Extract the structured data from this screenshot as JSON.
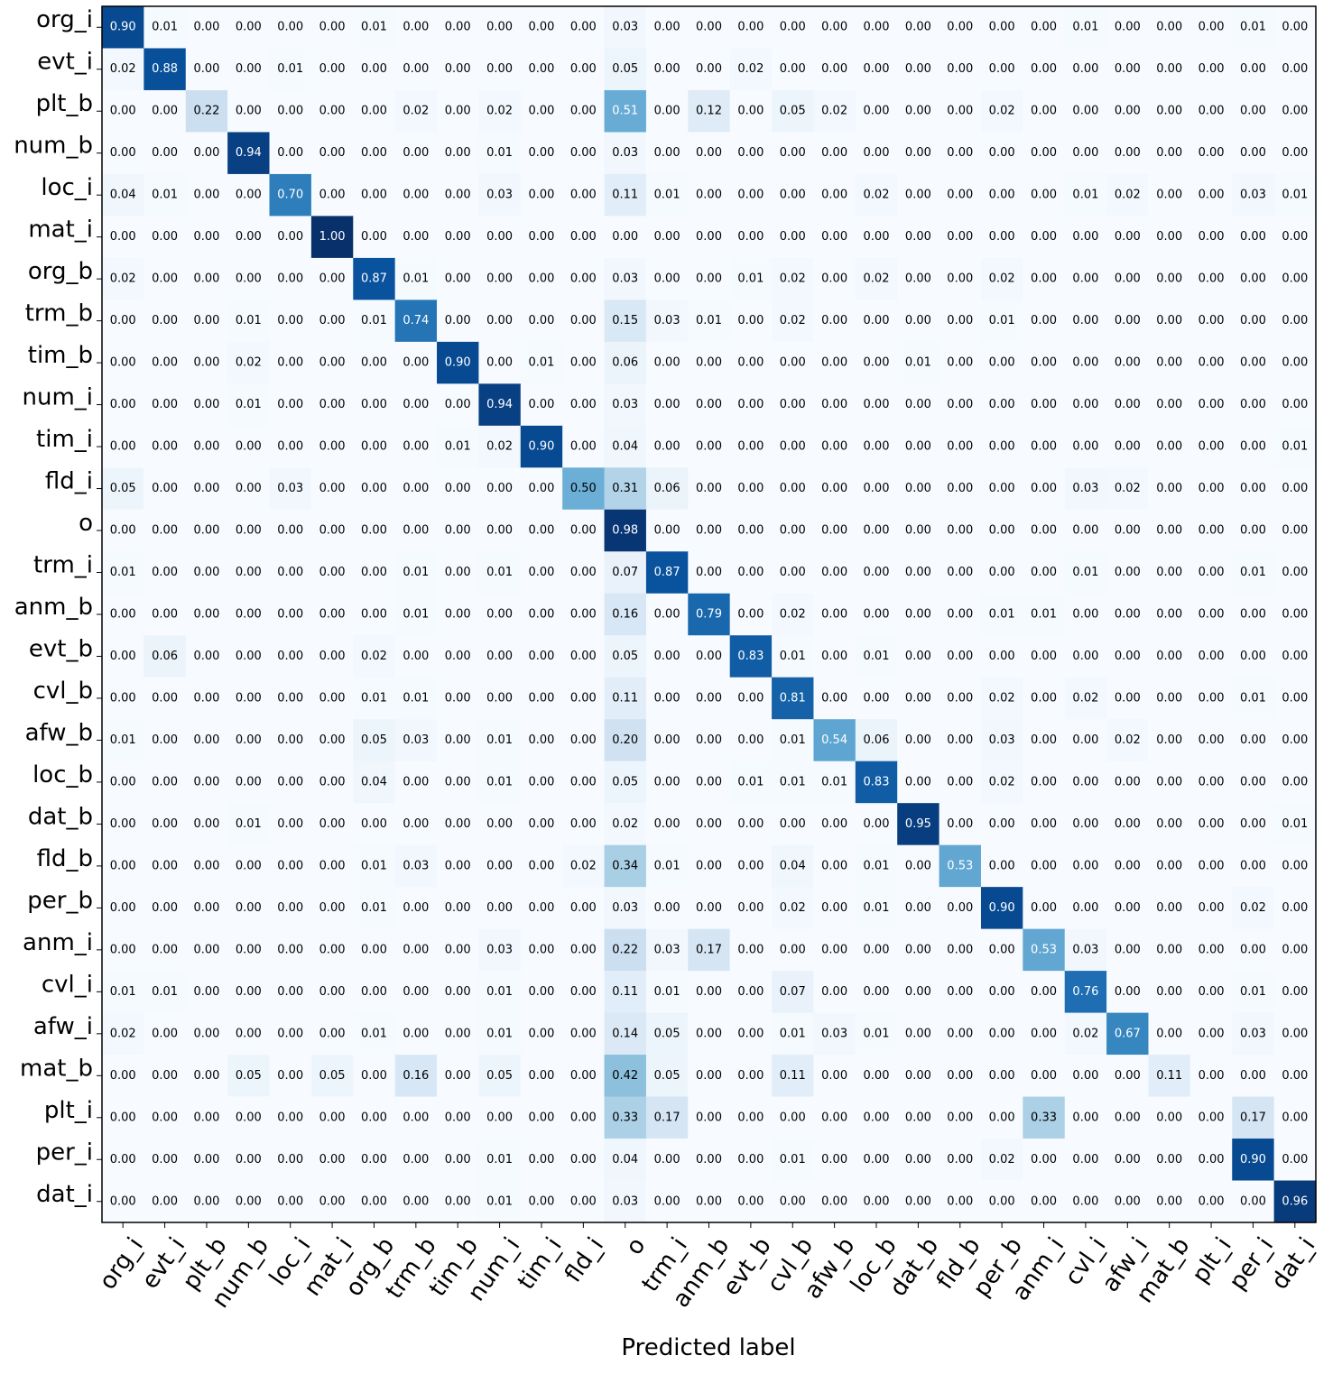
{
  "chart_data": {
    "type": "heatmap",
    "title": "",
    "xlabel": "Predicted label",
    "ylabel": "",
    "labels": [
      "org_i",
      "evt_i",
      "plt_b",
      "num_b",
      "loc_i",
      "mat_i",
      "org_b",
      "trm_b",
      "tim_b",
      "num_i",
      "tim_i",
      "fld_i",
      "o",
      "trm_i",
      "anm_b",
      "evt_b",
      "cvl_b",
      "afw_b",
      "loc_b",
      "dat_b",
      "fld_b",
      "per_b",
      "anm_i",
      "cvl_i",
      "afw_i",
      "mat_b",
      "plt_i",
      "per_i",
      "dat_i"
    ],
    "value_range": [
      0,
      1
    ],
    "colormap": "Blues",
    "matrix": [
      [
        0.9,
        0.01,
        0.0,
        0.0,
        0.0,
        0.0,
        0.01,
        0.0,
        0.0,
        0.0,
        0.0,
        0.0,
        0.03,
        0.0,
        0.0,
        0.0,
        0.0,
        0.0,
        0.0,
        0.0,
        0.0,
        0.0,
        0.0,
        0.01,
        0.0,
        0.0,
        0.0,
        0.01,
        0.0
      ],
      [
        0.02,
        0.88,
        0.0,
        0.0,
        0.01,
        0.0,
        0.0,
        0.0,
        0.0,
        0.0,
        0.0,
        0.0,
        0.05,
        0.0,
        0.0,
        0.02,
        0.0,
        0.0,
        0.0,
        0.0,
        0.0,
        0.0,
        0.0,
        0.0,
        0.0,
        0.0,
        0.0,
        0.0,
        0.0
      ],
      [
        0.0,
        0.0,
        0.22,
        0.0,
        0.0,
        0.0,
        0.0,
        0.02,
        0.0,
        0.02,
        0.0,
        0.0,
        0.51,
        0.0,
        0.12,
        0.0,
        0.05,
        0.02,
        0.0,
        0.0,
        0.0,
        0.02,
        0.0,
        0.0,
        0.0,
        0.0,
        0.0,
        0.0,
        0.0
      ],
      [
        0.0,
        0.0,
        0.0,
        0.94,
        0.0,
        0.0,
        0.0,
        0.0,
        0.0,
        0.01,
        0.0,
        0.0,
        0.03,
        0.0,
        0.0,
        0.0,
        0.0,
        0.0,
        0.0,
        0.0,
        0.0,
        0.0,
        0.0,
        0.0,
        0.0,
        0.0,
        0.0,
        0.0,
        0.0
      ],
      [
        0.04,
        0.01,
        0.0,
        0.0,
        0.7,
        0.0,
        0.0,
        0.0,
        0.0,
        0.03,
        0.0,
        0.0,
        0.11,
        0.01,
        0.0,
        0.0,
        0.0,
        0.0,
        0.02,
        0.0,
        0.0,
        0.0,
        0.0,
        0.01,
        0.02,
        0.0,
        0.0,
        0.03,
        0.01
      ],
      [
        0.0,
        0.0,
        0.0,
        0.0,
        0.0,
        1.0,
        0.0,
        0.0,
        0.0,
        0.0,
        0.0,
        0.0,
        0.0,
        0.0,
        0.0,
        0.0,
        0.0,
        0.0,
        0.0,
        0.0,
        0.0,
        0.0,
        0.0,
        0.0,
        0.0,
        0.0,
        0.0,
        0.0,
        0.0
      ],
      [
        0.02,
        0.0,
        0.0,
        0.0,
        0.0,
        0.0,
        0.87,
        0.01,
        0.0,
        0.0,
        0.0,
        0.0,
        0.03,
        0.0,
        0.0,
        0.01,
        0.02,
        0.0,
        0.02,
        0.0,
        0.0,
        0.02,
        0.0,
        0.0,
        0.0,
        0.0,
        0.0,
        0.0,
        0.0
      ],
      [
        0.0,
        0.0,
        0.0,
        0.01,
        0.0,
        0.0,
        0.01,
        0.74,
        0.0,
        0.0,
        0.0,
        0.0,
        0.15,
        0.03,
        0.01,
        0.0,
        0.02,
        0.0,
        0.0,
        0.0,
        0.0,
        0.01,
        0.0,
        0.0,
        0.0,
        0.0,
        0.0,
        0.0,
        0.0
      ],
      [
        0.0,
        0.0,
        0.0,
        0.02,
        0.0,
        0.0,
        0.0,
        0.0,
        0.9,
        0.0,
        0.01,
        0.0,
        0.06,
        0.0,
        0.0,
        0.0,
        0.0,
        0.0,
        0.0,
        0.01,
        0.0,
        0.0,
        0.0,
        0.0,
        0.0,
        0.0,
        0.0,
        0.0,
        0.0
      ],
      [
        0.0,
        0.0,
        0.0,
        0.01,
        0.0,
        0.0,
        0.0,
        0.0,
        0.0,
        0.94,
        0.0,
        0.0,
        0.03,
        0.0,
        0.0,
        0.0,
        0.0,
        0.0,
        0.0,
        0.0,
        0.0,
        0.0,
        0.0,
        0.0,
        0.0,
        0.0,
        0.0,
        0.0,
        0.0
      ],
      [
        0.0,
        0.0,
        0.0,
        0.0,
        0.0,
        0.0,
        0.0,
        0.0,
        0.01,
        0.02,
        0.9,
        0.0,
        0.04,
        0.0,
        0.0,
        0.0,
        0.0,
        0.0,
        0.0,
        0.0,
        0.0,
        0.0,
        0.0,
        0.0,
        0.0,
        0.0,
        0.0,
        0.0,
        0.01
      ],
      [
        0.05,
        0.0,
        0.0,
        0.0,
        0.03,
        0.0,
        0.0,
        0.0,
        0.0,
        0.0,
        0.0,
        0.5,
        0.31,
        0.06,
        0.0,
        0.0,
        0.0,
        0.0,
        0.0,
        0.0,
        0.0,
        0.0,
        0.0,
        0.03,
        0.02,
        0.0,
        0.0,
        0.0,
        0.0
      ],
      [
        0.0,
        0.0,
        0.0,
        0.0,
        0.0,
        0.0,
        0.0,
        0.0,
        0.0,
        0.0,
        0.0,
        0.0,
        0.98,
        0.0,
        0.0,
        0.0,
        0.0,
        0.0,
        0.0,
        0.0,
        0.0,
        0.0,
        0.0,
        0.0,
        0.0,
        0.0,
        0.0,
        0.0,
        0.0
      ],
      [
        0.01,
        0.0,
        0.0,
        0.0,
        0.0,
        0.0,
        0.0,
        0.01,
        0.0,
        0.01,
        0.0,
        0.0,
        0.07,
        0.87,
        0.0,
        0.0,
        0.0,
        0.0,
        0.0,
        0.0,
        0.0,
        0.0,
        0.0,
        0.01,
        0.0,
        0.0,
        0.0,
        0.01,
        0.0
      ],
      [
        0.0,
        0.0,
        0.0,
        0.0,
        0.0,
        0.0,
        0.0,
        0.01,
        0.0,
        0.0,
        0.0,
        0.0,
        0.16,
        0.0,
        0.79,
        0.0,
        0.02,
        0.0,
        0.0,
        0.0,
        0.0,
        0.01,
        0.01,
        0.0,
        0.0,
        0.0,
        0.0,
        0.0,
        0.0
      ],
      [
        0.0,
        0.06,
        0.0,
        0.0,
        0.0,
        0.0,
        0.02,
        0.0,
        0.0,
        0.0,
        0.0,
        0.0,
        0.05,
        0.0,
        0.0,
        0.83,
        0.01,
        0.0,
        0.01,
        0.0,
        0.0,
        0.0,
        0.0,
        0.0,
        0.0,
        0.0,
        0.0,
        0.0,
        0.0
      ],
      [
        0.0,
        0.0,
        0.0,
        0.0,
        0.0,
        0.0,
        0.01,
        0.01,
        0.0,
        0.0,
        0.0,
        0.0,
        0.11,
        0.0,
        0.0,
        0.0,
        0.81,
        0.0,
        0.0,
        0.0,
        0.0,
        0.02,
        0.0,
        0.02,
        0.0,
        0.0,
        0.0,
        0.01,
        0.0
      ],
      [
        0.01,
        0.0,
        0.0,
        0.0,
        0.0,
        0.0,
        0.05,
        0.03,
        0.0,
        0.01,
        0.0,
        0.0,
        0.2,
        0.0,
        0.0,
        0.0,
        0.01,
        0.54,
        0.06,
        0.0,
        0.0,
        0.03,
        0.0,
        0.0,
        0.02,
        0.0,
        0.0,
        0.0,
        0.0
      ],
      [
        0.0,
        0.0,
        0.0,
        0.0,
        0.0,
        0.0,
        0.04,
        0.0,
        0.0,
        0.01,
        0.0,
        0.0,
        0.05,
        0.0,
        0.0,
        0.01,
        0.01,
        0.01,
        0.83,
        0.0,
        0.0,
        0.02,
        0.0,
        0.0,
        0.0,
        0.0,
        0.0,
        0.0,
        0.0
      ],
      [
        0.0,
        0.0,
        0.0,
        0.01,
        0.0,
        0.0,
        0.0,
        0.0,
        0.0,
        0.0,
        0.0,
        0.0,
        0.02,
        0.0,
        0.0,
        0.0,
        0.0,
        0.0,
        0.0,
        0.95,
        0.0,
        0.0,
        0.0,
        0.0,
        0.0,
        0.0,
        0.0,
        0.0,
        0.01
      ],
      [
        0.0,
        0.0,
        0.0,
        0.0,
        0.0,
        0.0,
        0.01,
        0.03,
        0.0,
        0.0,
        0.0,
        0.02,
        0.34,
        0.01,
        0.0,
        0.0,
        0.04,
        0.0,
        0.01,
        0.0,
        0.53,
        0.0,
        0.0,
        0.0,
        0.0,
        0.0,
        0.0,
        0.0,
        0.0
      ],
      [
        0.0,
        0.0,
        0.0,
        0.0,
        0.0,
        0.0,
        0.01,
        0.0,
        0.0,
        0.0,
        0.0,
        0.0,
        0.03,
        0.0,
        0.0,
        0.0,
        0.02,
        0.0,
        0.01,
        0.0,
        0.0,
        0.9,
        0.0,
        0.0,
        0.0,
        0.0,
        0.0,
        0.02,
        0.0
      ],
      [
        0.0,
        0.0,
        0.0,
        0.0,
        0.0,
        0.0,
        0.0,
        0.0,
        0.0,
        0.03,
        0.0,
        0.0,
        0.22,
        0.03,
        0.17,
        0.0,
        0.0,
        0.0,
        0.0,
        0.0,
        0.0,
        0.0,
        0.53,
        0.03,
        0.0,
        0.0,
        0.0,
        0.0,
        0.0
      ],
      [
        0.01,
        0.01,
        0.0,
        0.0,
        0.0,
        0.0,
        0.0,
        0.0,
        0.0,
        0.01,
        0.0,
        0.0,
        0.11,
        0.01,
        0.0,
        0.0,
        0.07,
        0.0,
        0.0,
        0.0,
        0.0,
        0.0,
        0.0,
        0.76,
        0.0,
        0.0,
        0.0,
        0.01,
        0.0
      ],
      [
        0.02,
        0.0,
        0.0,
        0.0,
        0.0,
        0.0,
        0.01,
        0.0,
        0.0,
        0.01,
        0.0,
        0.0,
        0.14,
        0.05,
        0.0,
        0.0,
        0.01,
        0.03,
        0.01,
        0.0,
        0.0,
        0.0,
        0.0,
        0.02,
        0.67,
        0.0,
        0.0,
        0.03,
        0.0
      ],
      [
        0.0,
        0.0,
        0.0,
        0.05,
        0.0,
        0.05,
        0.0,
        0.16,
        0.0,
        0.05,
        0.0,
        0.0,
        0.42,
        0.05,
        0.0,
        0.0,
        0.11,
        0.0,
        0.0,
        0.0,
        0.0,
        0.0,
        0.0,
        0.0,
        0.0,
        0.11,
        0.0,
        0.0,
        0.0
      ],
      [
        0.0,
        0.0,
        0.0,
        0.0,
        0.0,
        0.0,
        0.0,
        0.0,
        0.0,
        0.0,
        0.0,
        0.0,
        0.33,
        0.17,
        0.0,
        0.0,
        0.0,
        0.0,
        0.0,
        0.0,
        0.0,
        0.0,
        0.33,
        0.0,
        0.0,
        0.0,
        0.0,
        0.17,
        0.0
      ],
      [
        0.0,
        0.0,
        0.0,
        0.0,
        0.0,
        0.0,
        0.0,
        0.0,
        0.0,
        0.01,
        0.0,
        0.0,
        0.04,
        0.0,
        0.0,
        0.0,
        0.01,
        0.0,
        0.0,
        0.0,
        0.0,
        0.02,
        0.0,
        0.0,
        0.0,
        0.0,
        0.0,
        0.9,
        0.0
      ],
      [
        0.0,
        0.0,
        0.0,
        0.0,
        0.0,
        0.0,
        0.0,
        0.0,
        0.0,
        0.01,
        0.0,
        0.0,
        0.03,
        0.0,
        0.0,
        0.0,
        0.0,
        0.0,
        0.0,
        0.0,
        0.0,
        0.0,
        0.0,
        0.0,
        0.0,
        0.0,
        0.0,
        0.0,
        0.96
      ]
    ]
  }
}
